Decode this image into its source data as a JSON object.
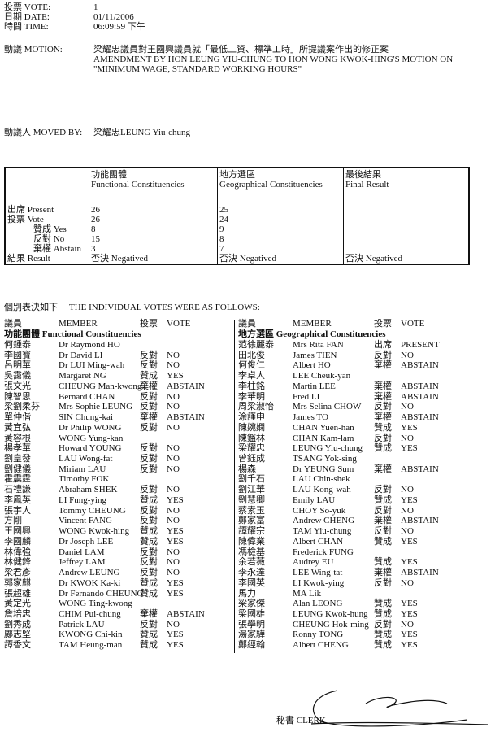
{
  "header": {
    "vote_label": "投票 VOTE:",
    "vote_value": "1",
    "date_label": "日期 DATE:",
    "date_value": "01/11/2006",
    "time_label": "時間 TIME:",
    "time_value": "06:09:59 下午",
    "motion_label": "動議 MOTION:",
    "motion_zh": "梁耀忠議員對王國興議員就「最低工資、標準工時」所提議案作出的修正案",
    "motion_en_1": "AMENDMENT BY HON LEUNG YIU-CHUNG TO HON WONG KWOK-HING'S MOTION ON",
    "motion_en_2": "\"MINIMUM WAGE, STANDARD WORKING HOURS\"",
    "moved_by_label": "動議人 MOVED BY:",
    "moved_by_value": "梁耀忠LEUNG Yiu-chung"
  },
  "summary": {
    "columns": [
      {
        "zh": "功能團體",
        "en": "Functional Constituencies"
      },
      {
        "zh": "地方選區",
        "en": "Geographical Constituencies"
      },
      {
        "zh": "最後結果",
        "en": "Final Result"
      }
    ],
    "row_labels": [
      "出席 Present",
      "投票 Vote",
      "贊成 Yes",
      "反對 No",
      "棄權 Abstain",
      "結果 Result"
    ],
    "functional": [
      "26",
      "26",
      "8",
      "15",
      "3",
      "否決 Negatived"
    ],
    "geographical": [
      "25",
      "24",
      "9",
      "8",
      "7",
      "否決 Negatived"
    ],
    "final": [
      "",
      "",
      "",
      "",
      "",
      "否決 Negatived"
    ]
  },
  "votes": {
    "title_zh": "個別表決如下",
    "title_en": "THE INDIVIDUAL VOTES WERE AS FOLLOWS:",
    "headers": {
      "zh": "議員",
      "member": "MEMBER",
      "vote_zh": "投票",
      "vote": "VOTE"
    },
    "functional_title": "功能團體 Functional Constituencies",
    "geographical_title": "地方選區 Geographical Constituencies",
    "functional": [
      [
        "何鍾泰",
        "Dr Raymond HO",
        "",
        ""
      ],
      [
        "李國寶",
        "Dr David LI",
        "反對",
        "NO"
      ],
      [
        "呂明華",
        "Dr LUI Ming-wah",
        "反對",
        "NO"
      ],
      [
        "吳靄儀",
        "Margaret NG",
        "贊成",
        "YES"
      ],
      [
        "張文光",
        "CHEUNG Man-kwong",
        "棄權",
        "ABSTAIN"
      ],
      [
        "陳智思",
        "Bernard CHAN",
        "反對",
        "NO"
      ],
      [
        "梁劉柔芬",
        "Mrs Sophie LEUNG",
        "反對",
        "NO"
      ],
      [
        "單仲偕",
        "SIN Chung-kai",
        "棄權",
        "ABSTAIN"
      ],
      [
        "黃宜弘",
        "Dr Philip WONG",
        "反對",
        "NO"
      ],
      [
        "黃容根",
        "WONG Yung-kan",
        "",
        ""
      ],
      [
        "楊孝華",
        "Howard YOUNG",
        "反對",
        "NO"
      ],
      [
        "劉皇發",
        "LAU Wong-fat",
        "反對",
        "NO"
      ],
      [
        "劉健儀",
        "Miriam LAU",
        "反對",
        "NO"
      ],
      [
        "霍震霆",
        "Timothy FOK",
        "",
        ""
      ],
      [
        "石禮謙",
        "Abraham SHEK",
        "反對",
        "NO"
      ],
      [
        "李鳳英",
        "LI Fung-ying",
        "贊成",
        "YES"
      ],
      [
        "張宇人",
        "Tommy CHEUNG",
        "反對",
        "NO"
      ],
      [
        "方剛",
        "Vincent FANG",
        "反對",
        "NO"
      ],
      [
        "王國興",
        "WONG Kwok-hing",
        "贊成",
        "YES"
      ],
      [
        "李國麟",
        "Dr Joseph LEE",
        "贊成",
        "YES"
      ],
      [
        "林偉強",
        "Daniel LAM",
        "反對",
        "NO"
      ],
      [
        "林健鋒",
        "Jeffrey LAM",
        "反對",
        "NO"
      ],
      [
        "梁君彥",
        "Andrew LEUNG",
        "反對",
        "NO"
      ],
      [
        "郭家麒",
        "Dr KWOK Ka-ki",
        "贊成",
        "YES"
      ],
      [
        "張超雄",
        "Dr Fernando CHEUNG",
        "贊成",
        "YES"
      ],
      [
        "黃定光",
        "WONG Ting-kwong",
        "",
        ""
      ],
      [
        "詹培忠",
        "CHIM Pui-chung",
        "棄權",
        "ABSTAIN"
      ],
      [
        "劉秀成",
        "Patrick LAU",
        "反對",
        "NO"
      ],
      [
        "鄺志堅",
        "KWONG Chi-kin",
        "贊成",
        "YES"
      ],
      [
        "譚香文",
        "TAM Heung-man",
        "贊成",
        "YES"
      ]
    ],
    "geographical": [
      [
        "范徐麗泰",
        "Mrs Rita FAN",
        "出席",
        "PRESENT"
      ],
      [
        "田北俊",
        "James TIEN",
        "反對",
        "NO"
      ],
      [
        "何俊仁",
        "Albert HO",
        "棄權",
        "ABSTAIN"
      ],
      [
        "李卓人",
        "LEE Cheuk-yan",
        "",
        ""
      ],
      [
        "李柱銘",
        "Martin LEE",
        "棄權",
        "ABSTAIN"
      ],
      [
        "李華明",
        "Fred LI",
        "棄權",
        "ABSTAIN"
      ],
      [
        "周梁淑怡",
        "Mrs Selina CHOW",
        "反對",
        "NO"
      ],
      [
        "涂謹申",
        "James TO",
        "棄權",
        "ABSTAIN"
      ],
      [
        "陳婉嫻",
        "CHAN Yuen-han",
        "贊成",
        "YES"
      ],
      [
        "陳鑑林",
        "CHAN Kam-lam",
        "反對",
        "NO"
      ],
      [
        "梁耀忠",
        "LEUNG Yiu-chung",
        "贊成",
        "YES"
      ],
      [
        "曾鈺成",
        "TSANG Yok-sing",
        "",
        ""
      ],
      [
        "楊森",
        "Dr YEUNG Sum",
        "棄權",
        "ABSTAIN"
      ],
      [
        "劉千石",
        "LAU Chin-shek",
        "",
        ""
      ],
      [
        "劉江華",
        "LAU Kong-wah",
        "反對",
        "NO"
      ],
      [
        "劉慧卿",
        "Emily LAU",
        "贊成",
        "YES"
      ],
      [
        "蔡素玉",
        "CHOY So-yuk",
        "反對",
        "NO"
      ],
      [
        "鄭家富",
        "Andrew CHENG",
        "棄權",
        "ABSTAIN"
      ],
      [
        "譚耀宗",
        "TAM Yiu-chung",
        "反對",
        "NO"
      ],
      [
        "陳偉業",
        "Albert CHAN",
        "贊成",
        "YES"
      ],
      [
        "馮檢基",
        "Frederick FUNG",
        "",
        ""
      ],
      [
        "余若薇",
        "Audrey EU",
        "贊成",
        "YES"
      ],
      [
        "李永達",
        "LEE Wing-tat",
        "棄權",
        "ABSTAIN"
      ],
      [
        "李國英",
        "LI Kwok-ying",
        "反對",
        "NO"
      ],
      [
        "馬力",
        "MA Lik",
        "",
        ""
      ],
      [
        "梁家傑",
        "Alan LEONG",
        "贊成",
        "YES"
      ],
      [
        "梁國雄",
        "LEUNG Kwok-hung",
        "贊成",
        "YES"
      ],
      [
        "張學明",
        "CHEUNG Hok-ming",
        "反對",
        "NO"
      ],
      [
        "湯家驊",
        "Ronny TONG",
        "贊成",
        "YES"
      ],
      [
        "鄭經翰",
        "Albert CHENG",
        "贊成",
        "YES"
      ]
    ]
  },
  "footer": {
    "clerk_label": "秘書 CLERK",
    "signature_icon": "handwritten-signature"
  }
}
